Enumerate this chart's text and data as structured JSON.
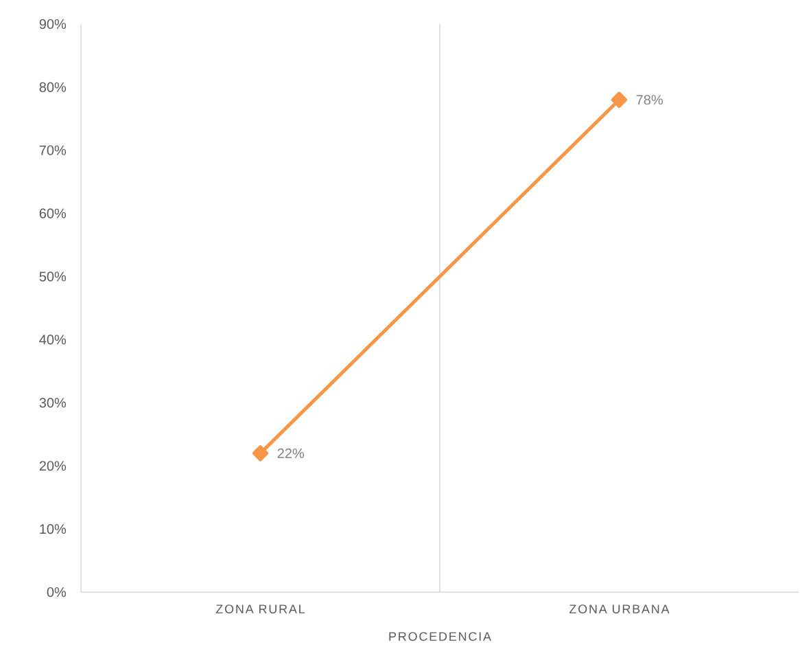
{
  "chart_data": {
    "type": "line",
    "xlabel": "PROCEDENCIA",
    "categories": [
      "ZONA RURAL",
      "ZONA URBANA"
    ],
    "values": [
      22,
      78
    ],
    "color": "#f79646",
    "value_labels": [
      "22%",
      "78%"
    ],
    "ylim": [
      0,
      90
    ],
    "yticks": [
      {
        "value": 0,
        "label": "0%"
      },
      {
        "value": 10,
        "label": "10%"
      },
      {
        "value": 20,
        "label": "20%"
      },
      {
        "value": 30,
        "label": "30%"
      },
      {
        "value": 40,
        "label": "40%"
      },
      {
        "value": 50,
        "label": "50%"
      },
      {
        "value": 60,
        "label": "60%"
      },
      {
        "value": 70,
        "label": "70%"
      },
      {
        "value": 80,
        "label": "80%"
      },
      {
        "value": 90,
        "label": "90%"
      }
    ],
    "grid": "x",
    "marker": "diamond",
    "line_style": "solid"
  }
}
